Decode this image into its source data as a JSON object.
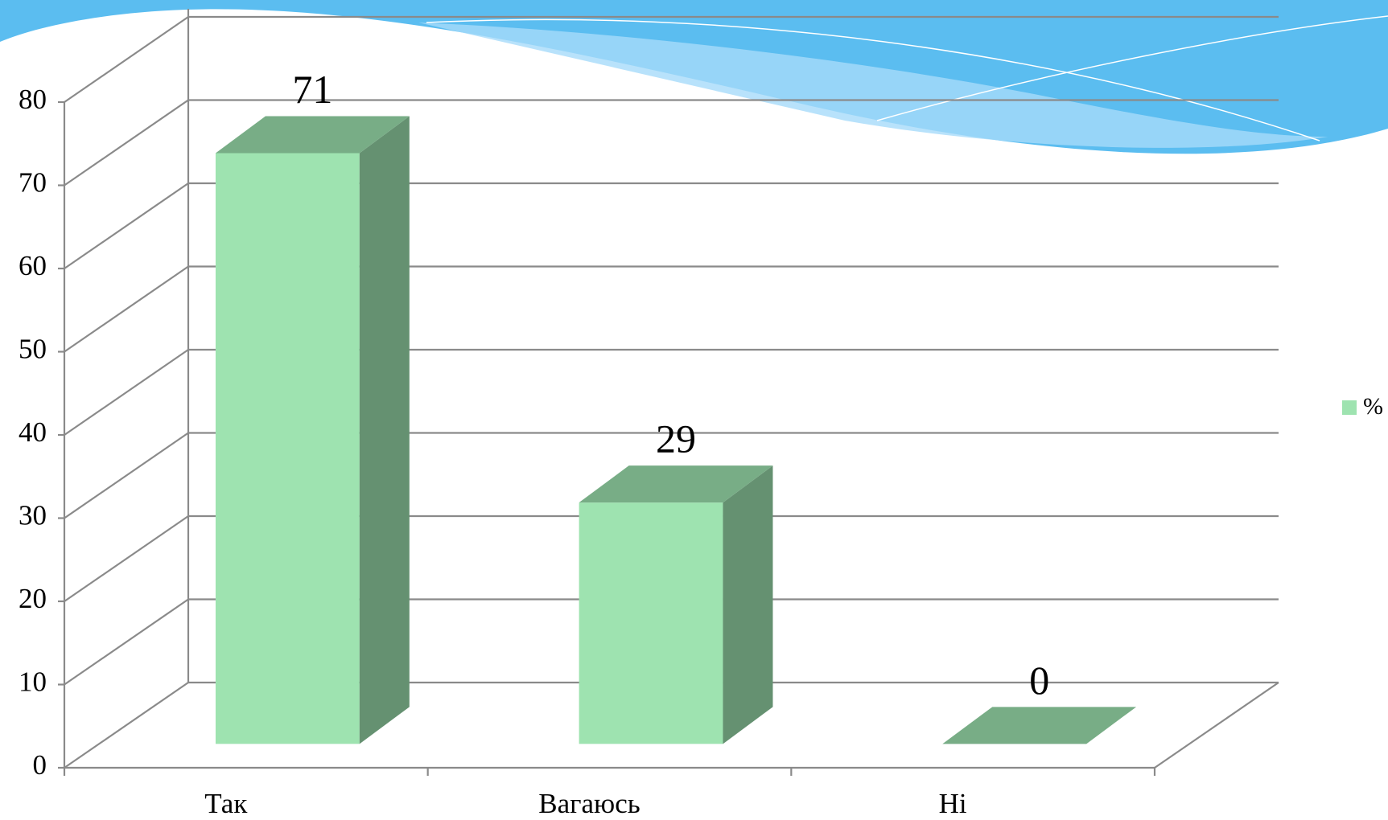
{
  "chart_data": {
    "type": "bar3d",
    "categories": [
      "Так",
      "Вагаюсь",
      "Ні"
    ],
    "series": [
      {
        "name": "%",
        "color": "#9ee3b0",
        "values": [
          71,
          29,
          0
        ]
      }
    ],
    "ylim": [
      0,
      80
    ],
    "yticks": [
      0,
      10,
      20,
      30,
      40,
      50,
      60,
      70,
      80
    ],
    "grid": true,
    "legend": "right"
  }
}
